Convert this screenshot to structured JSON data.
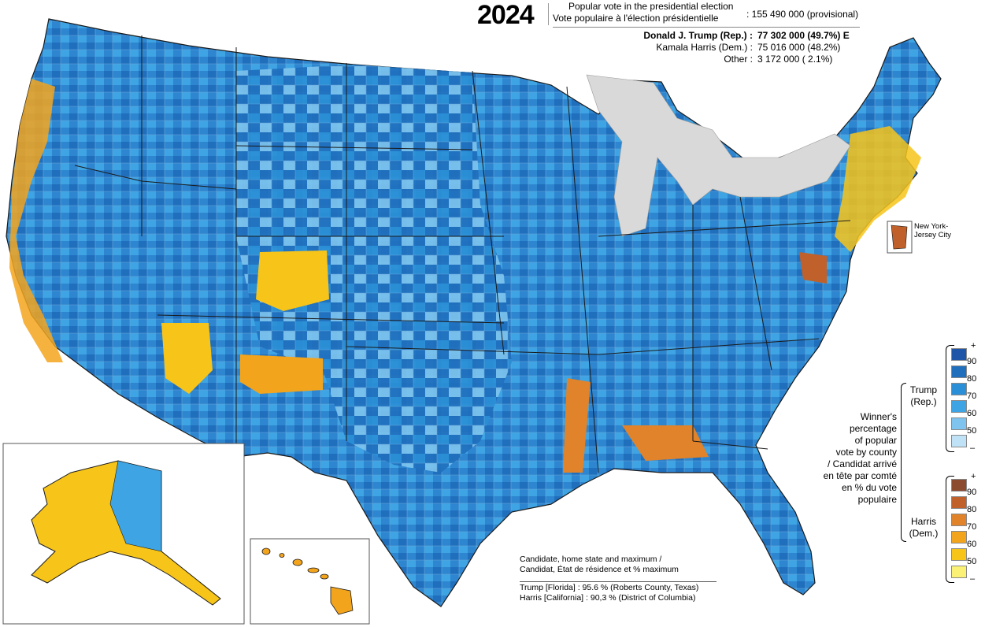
{
  "header": {
    "year": "2024",
    "title_en": "Popular vote in the presidential election",
    "title_fr": "Vote populaire à l'élection présidentielle",
    "total": ": 155 490 000 (provisional)"
  },
  "results": [
    {
      "name": "Donald J. Trump (Rep.) :",
      "value": "77 302 000  (49.7%)  E",
      "bold": true
    },
    {
      "name": "Kamala Harris (Dem.) :",
      "value": "75 016 000  (48.2%)",
      "bold": false
    },
    {
      "name": "Other :",
      "value": "3 172 000  (  2.1%)",
      "bold": false
    }
  ],
  "legend": {
    "plus_label": "+",
    "minus_label": "–",
    "trump_label": "Trump\n(Rep.)",
    "harris_label": "Harris\n(Dem.)",
    "caption": "Winner's\npercentage\nof popular\nvote by county\n/ Candidat arrivé\nen tête par comté\nen % du vote\npopulaire",
    "trump_scale": [
      {
        "label": "90",
        "color": "#1f55a8"
      },
      {
        "label": "80",
        "color": "#1f6fbd"
      },
      {
        "label": "70",
        "color": "#2a8fd6"
      },
      {
        "label": "60",
        "color": "#3fa4e3"
      },
      {
        "label": "50",
        "color": "#7ec4ee"
      },
      {
        "label": "",
        "color": "#bfe2f6"
      }
    ],
    "harris_scale": [
      {
        "label": "90",
        "color": "#8c4a2f"
      },
      {
        "label": "80",
        "color": "#c0602a"
      },
      {
        "label": "70",
        "color": "#e0832a"
      },
      {
        "label": "60",
        "color": "#f3a41d"
      },
      {
        "label": "50",
        "color": "#f7c41a"
      },
      {
        "label": "",
        "color": "#fbf176"
      }
    ]
  },
  "info": {
    "heading_en": "Candidate, home state and maximum /",
    "heading_fr": "Candidat, État de résidence et % maximum",
    "trump_line": "Trump [Florida]     : 95.6 % (Roberts County, Texas)",
    "harris_line": "Harris [California] : 90,3 % (District of Columbia)"
  },
  "inset_label": "New York-\nJersey City",
  "colors": {
    "lakes": "#d9d9d9",
    "border": "#1a1a1a"
  }
}
